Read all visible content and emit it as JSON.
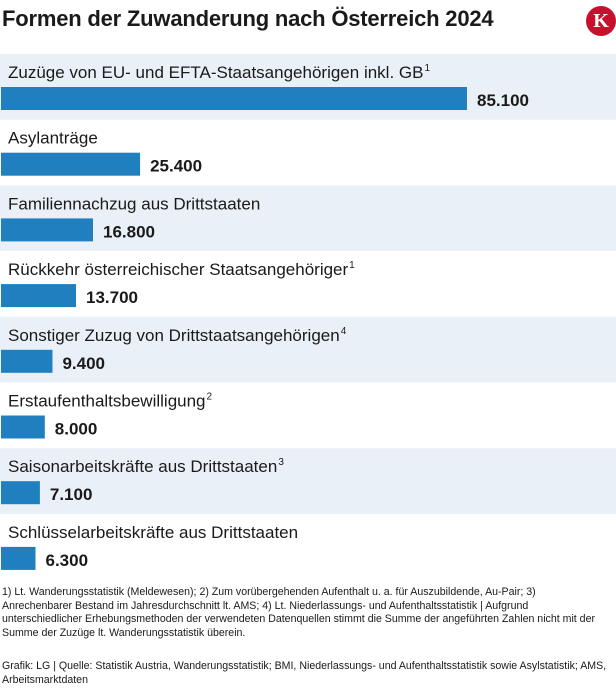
{
  "title": "Formen der Zuwanderung nach Österreich 2024",
  "logo_letter": "K",
  "colors": {
    "bar": "#1f7fbf",
    "row_band": "#e9f0f7",
    "logo": "#c8102e"
  },
  "chart_data": {
    "type": "bar",
    "orientation": "horizontal",
    "title": "Formen der Zuwanderung nach Österreich 2024",
    "categories": [
      "Zuzüge von EU- und EFTA-Staatsangehörigen inkl. GB",
      "Asylanträge",
      "Familiennachzug aus Drittstaaten",
      "Rückkehr österreichischer Staatsangehöriger",
      "Sonstiger Zuzug von Drittstaatsangehörigen",
      "Erstaufenthaltsbewilligung",
      "Saisonarbeitskräfte aus Drittstaaten",
      "Schlüsselarbeitskräfte aus Drittstaaten"
    ],
    "footnote_marks": [
      "1",
      "",
      "",
      "1",
      "4",
      "2",
      "3",
      ""
    ],
    "values": [
      85100,
      25400,
      16800,
      13700,
      9400,
      8000,
      7100,
      6300
    ],
    "value_labels": [
      "85.100",
      "25.400",
      "16.800",
      "13.700",
      "9.400",
      "8.000",
      "7.100",
      "6.300"
    ],
    "xlim": [
      0,
      85100
    ],
    "grid": false,
    "alternating_row_bands": true
  },
  "footnotes": "1) Lt. Wanderungsstatistik (Meldewesen); 2) Zum vorübergehenden Aufenthalt u. a. für Auszubildende, Au-Pair; 3) Anrechenbarer Bestand im Jahresdurchschnitt lt. AMS; 4) Lt. Niederlassungs- und Aufenthaltsstatistik | Aufgrund unterschiedlicher Erhebungsmethoden der verwendeten Datenquellen stimmt die Summe der angeführten Zahlen nicht mit der Summe der Zuzüge lt. Wanderungsstatistik überein.",
  "source": "Grafik: LG | Quelle: Statistik Austria, Wanderungsstatistik; BMI, Niederlassungs- und Aufenthaltsstatistik sowie Asylstatistik; AMS, Arbeitsmarktdaten"
}
